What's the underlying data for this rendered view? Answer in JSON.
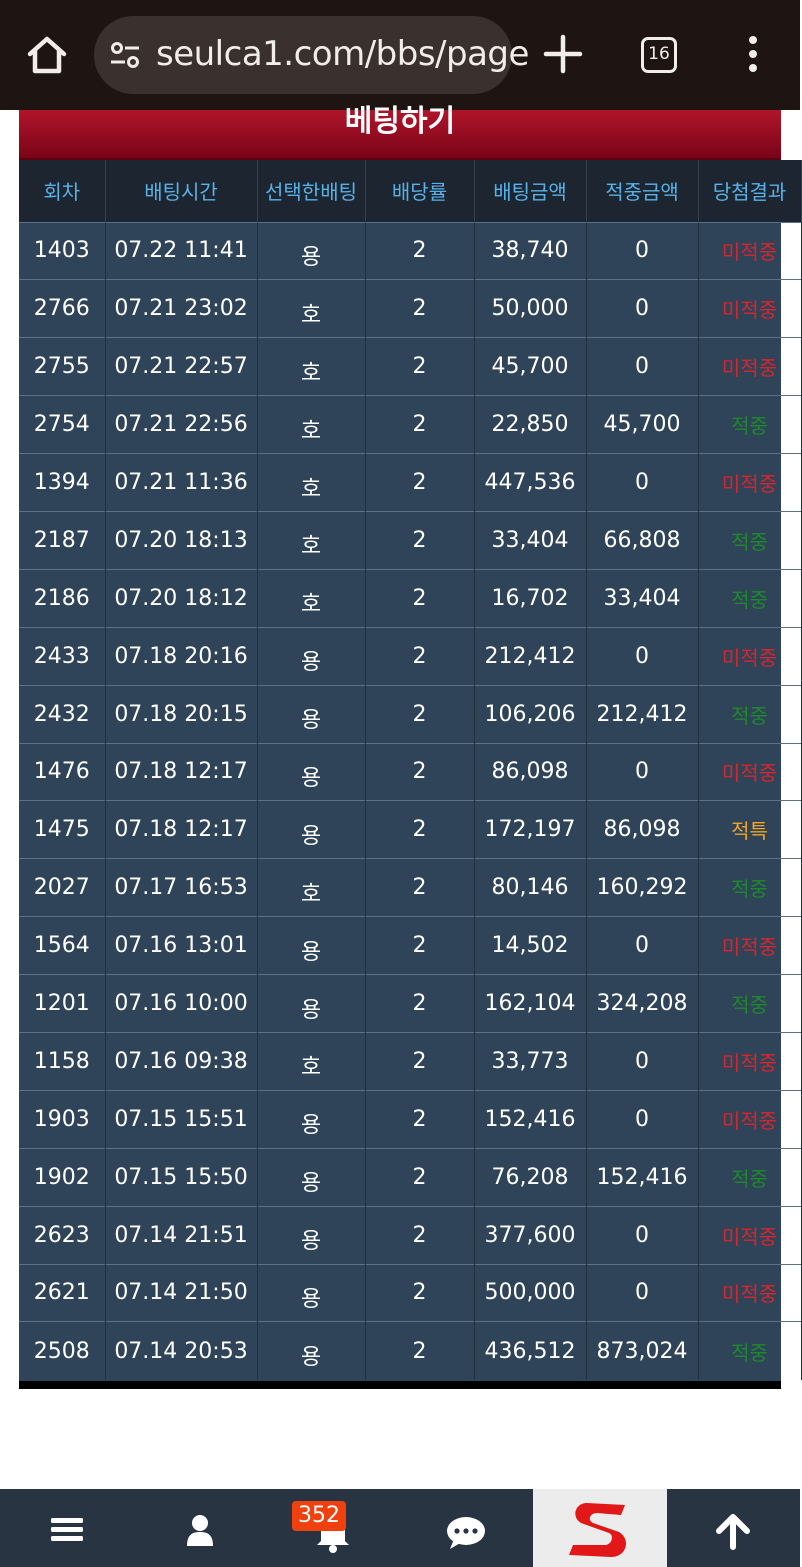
{
  "browser": {
    "url": "seulca1.com/bbs/page",
    "tab_count": "16",
    "icons": [
      "home-icon",
      "site-settings-icon",
      "new-tab-icon",
      "tab-switcher-icon",
      "more-menu-icon"
    ]
  },
  "page": {
    "title": "베팅하기"
  },
  "table": {
    "headers": [
      "회차",
      "배팅시간",
      "선택한배팅",
      "배당률",
      "배팅금액",
      "적중금액",
      "당첨결과"
    ],
    "rows": [
      {
        "round": "1403",
        "time": "07.22 11:41",
        "pick": "용",
        "odds": "2",
        "amount": "38,740",
        "win": "0",
        "result": "미적중",
        "status": "lose"
      },
      {
        "round": "2766",
        "time": "07.21 23:02",
        "pick": "호",
        "odds": "2",
        "amount": "50,000",
        "win": "0",
        "result": "미적중",
        "status": "lose"
      },
      {
        "round": "2755",
        "time": "07.21 22:57",
        "pick": "호",
        "odds": "2",
        "amount": "45,700",
        "win": "0",
        "result": "미적중",
        "status": "lose"
      },
      {
        "round": "2754",
        "time": "07.21 22:56",
        "pick": "호",
        "odds": "2",
        "amount": "22,850",
        "win": "45,700",
        "result": "적중",
        "status": "win"
      },
      {
        "round": "1394",
        "time": "07.21 11:36",
        "pick": "호",
        "odds": "2",
        "amount": "447,536",
        "win": "0",
        "result": "미적중",
        "status": "lose"
      },
      {
        "round": "2187",
        "time": "07.20 18:13",
        "pick": "호",
        "odds": "2",
        "amount": "33,404",
        "win": "66,808",
        "result": "적중",
        "status": "win"
      },
      {
        "round": "2186",
        "time": "07.20 18:12",
        "pick": "호",
        "odds": "2",
        "amount": "16,702",
        "win": "33,404",
        "result": "적중",
        "status": "win"
      },
      {
        "round": "2433",
        "time": "07.18 20:16",
        "pick": "용",
        "odds": "2",
        "amount": "212,412",
        "win": "0",
        "result": "미적중",
        "status": "lose"
      },
      {
        "round": "2432",
        "time": "07.18 20:15",
        "pick": "용",
        "odds": "2",
        "amount": "106,206",
        "win": "212,412",
        "result": "적중",
        "status": "win"
      },
      {
        "round": "1476",
        "time": "07.18 12:17",
        "pick": "용",
        "odds": "2",
        "amount": "86,098",
        "win": "0",
        "result": "미적중",
        "status": "lose"
      },
      {
        "round": "1475",
        "time": "07.18 12:17",
        "pick": "용",
        "odds": "2",
        "amount": "172,197",
        "win": "86,098",
        "result": "적특",
        "status": "special"
      },
      {
        "round": "2027",
        "time": "07.17 16:53",
        "pick": "호",
        "odds": "2",
        "amount": "80,146",
        "win": "160,292",
        "result": "적중",
        "status": "win"
      },
      {
        "round": "1564",
        "time": "07.16 13:01",
        "pick": "용",
        "odds": "2",
        "amount": "14,502",
        "win": "0",
        "result": "미적중",
        "status": "lose"
      },
      {
        "round": "1201",
        "time": "07.16 10:00",
        "pick": "용",
        "odds": "2",
        "amount": "162,104",
        "win": "324,208",
        "result": "적중",
        "status": "win"
      },
      {
        "round": "1158",
        "time": "07.16 09:38",
        "pick": "호",
        "odds": "2",
        "amount": "33,773",
        "win": "0",
        "result": "미적중",
        "status": "lose"
      },
      {
        "round": "1903",
        "time": "07.15 15:51",
        "pick": "용",
        "odds": "2",
        "amount": "152,416",
        "win": "0",
        "result": "미적중",
        "status": "lose"
      },
      {
        "round": "1902",
        "time": "07.15 15:50",
        "pick": "용",
        "odds": "2",
        "amount": "76,208",
        "win": "152,416",
        "result": "적중",
        "status": "win"
      },
      {
        "round": "2623",
        "time": "07.14 21:51",
        "pick": "용",
        "odds": "2",
        "amount": "377,600",
        "win": "0",
        "result": "미적중",
        "status": "lose"
      },
      {
        "round": "2621",
        "time": "07.14 21:50",
        "pick": "용",
        "odds": "2",
        "amount": "500,000",
        "win": "0",
        "result": "미적중",
        "status": "lose"
      },
      {
        "round": "2508",
        "time": "07.14 20:53",
        "pick": "용",
        "odds": "2",
        "amount": "436,512",
        "win": "873,024",
        "result": "적중",
        "status": "win"
      }
    ]
  },
  "bottom_nav": {
    "notification_count": "352",
    "icons": [
      "menu-icon",
      "user-icon",
      "bell-icon",
      "chat-icon",
      "site-logo",
      "arrow-up-icon"
    ]
  },
  "colors": {
    "header_red": "#9a0b22",
    "table_bg": "#2f4458",
    "header_text": "#56b2e8",
    "lose": "#d8252d",
    "win": "#1c8a2a",
    "special": "#f0a524",
    "badge": "#f0400e"
  }
}
